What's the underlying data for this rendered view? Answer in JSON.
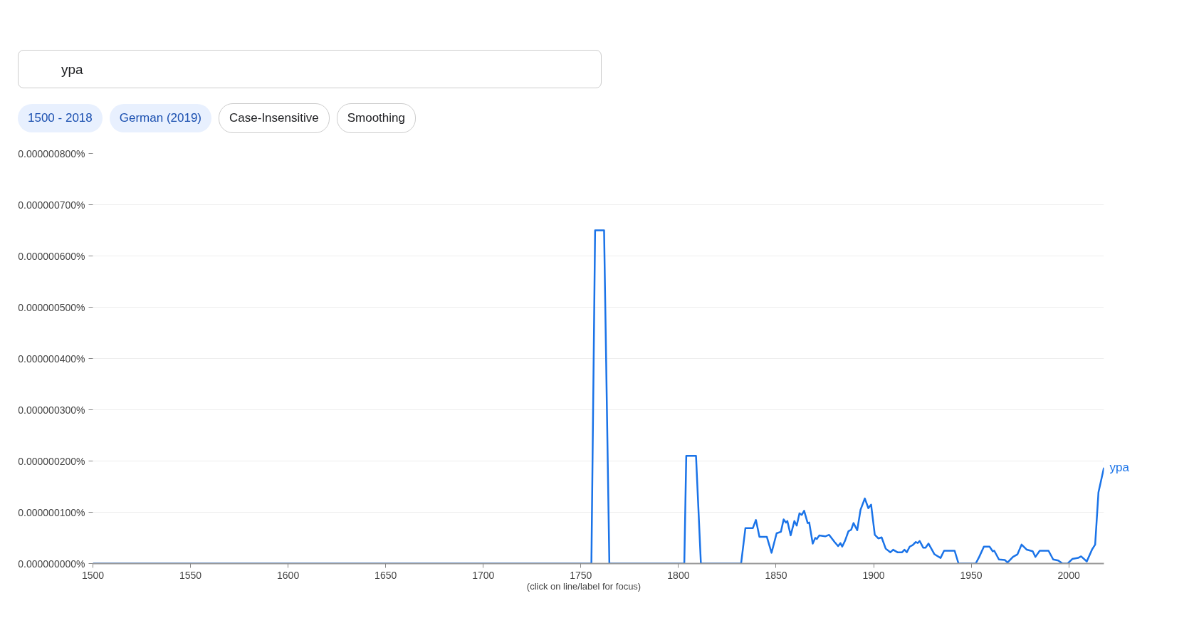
{
  "chart_data": {
    "type": "line",
    "annotations": [
      "ypa",
      "1500 - 2018",
      "German (2019)",
      "Case-Insensitive",
      "Smoothing",
      "(click on line/label for focus)"
    ],
    "xlim": [
      1500,
      2018
    ],
    "xticks": [
      1500,
      1550,
      1600,
      1650,
      1700,
      1750,
      1800,
      1850,
      1900,
      1950,
      2000
    ],
    "ylim": [
      0,
      8e-07
    ],
    "yticks": [
      {
        "value": 0,
        "label": "0.000000000%"
      },
      {
        "value": 1e-07,
        "label": "0.000000100%"
      },
      {
        "value": 2e-07,
        "label": "0.000000200%"
      },
      {
        "value": 3e-07,
        "label": "0.000000300%"
      },
      {
        "value": 4e-07,
        "label": "0.000000400%"
      },
      {
        "value": 5e-07,
        "label": "0.000000500%"
      },
      {
        "value": 6e-07,
        "label": "0.000000600%"
      },
      {
        "value": 7e-07,
        "label": "0.000000700%"
      },
      {
        "value": 8e-07,
        "label": "0.000000800%"
      }
    ],
    "grid": "y",
    "series": [
      {
        "name": "ypa",
        "color": "#1a73e8",
        "x": [
          1500,
          1755.4,
          1757.3,
          1761.9,
          1764.6,
          1803,
          1804,
          1809,
          1811.5,
          1832.1,
          1834.3,
          1838.1,
          1839.7,
          1841.5,
          1845.3,
          1847.7,
          1850.3,
          1852.5,
          1853.9,
          1855.1,
          1855.8,
          1857.5,
          1859.4,
          1860.6,
          1862.0,
          1863.2,
          1864.4,
          1866.2,
          1867,
          1868.8,
          1870.1,
          1870.9,
          1872.2,
          1875.2,
          1877.2,
          1880.0,
          1881.8,
          1883,
          1883.9,
          1885.3,
          1887.1,
          1888.5,
          1889.7,
          1891.6,
          1893.3,
          1895.5,
          1897.3,
          1898.7,
          1900.6,
          1902.4,
          1904.1,
          1906.2,
          1908.6,
          1910,
          1912.2,
          1914.6,
          1915.8,
          1917,
          1918.5,
          1920,
          1921.6,
          1922.6,
          1923.6,
          1925.4,
          1926.6,
          1928.1,
          1931.2,
          1934.3,
          1936.1,
          1941.5,
          1943.5,
          1952.3,
          1954.1,
          1956.5,
          1959.4,
          1961,
          1961.8,
          1964.2,
          1967.2,
          1968.6,
          1971.4,
          1973.7,
          1975.8,
          1978.5,
          1981.5,
          1982.9,
          1985.1,
          1989.6,
          1992,
          1994.6,
          1996.8,
          1999.4,
          2001.8,
          2004.8,
          2006.3,
          2009.2,
          2012,
          2013.5,
          2015.2,
          2018
        ],
        "values": [
          0,
          0,
          6.5e-07,
          6.5e-07,
          0,
          0,
          2.1e-07,
          2.1e-07,
          0,
          0,
          6.9e-08,
          6.9e-08,
          8.5e-08,
          5.2e-08,
          5.2e-08,
          2.1e-08,
          5.9e-08,
          6.2e-08,
          8.6e-08,
          8e-08,
          8.3e-08,
          5.5e-08,
          8.3e-08,
          7.4e-08,
          9.8e-08,
          9.5e-08,
          1.03e-07,
          7.9e-08,
          8e-08,
          3.9e-08,
          5e-08,
          4.8e-08,
          5.5e-08,
          5.3e-08,
          5.6e-08,
          4.2e-08,
          3.4e-08,
          4e-08,
          3.3e-08,
          4.4e-08,
          6.3e-08,
          6.6e-08,
          7.9e-08,
          6.5e-08,
          1.05e-07,
          1.27e-07,
          1.08e-07,
          1.15e-07,
          5.6e-08,
          4.9e-08,
          5.1e-08,
          2.9e-08,
          2.2e-08,
          2.7e-08,
          2.2e-08,
          2.2e-08,
          2.7e-08,
          2.2e-08,
          3.3e-08,
          3.6e-08,
          4.2e-08,
          4e-08,
          4.4e-08,
          3.1e-08,
          3.1e-08,
          3.9e-08,
          1.8e-08,
          1.1e-08,
          2.5e-08,
          2.5e-08,
          0,
          0,
          1.3e-08,
          3.3e-08,
          3.3e-08,
          2.4e-08,
          2.5e-08,
          8e-09,
          7e-09,
          2e-09,
          1.3e-08,
          1.8e-08,
          3.7e-08,
          2.7e-08,
          2.4e-08,
          1.3e-08,
          2.5e-08,
          2.5e-08,
          8e-09,
          6e-09,
          0,
          0,
          9e-09,
          1.1e-08,
          1.4e-08,
          4e-09,
          2.8e-08,
          3.7e-08,
          1.39e-07,
          1.87e-07
        ]
      }
    ]
  }
}
